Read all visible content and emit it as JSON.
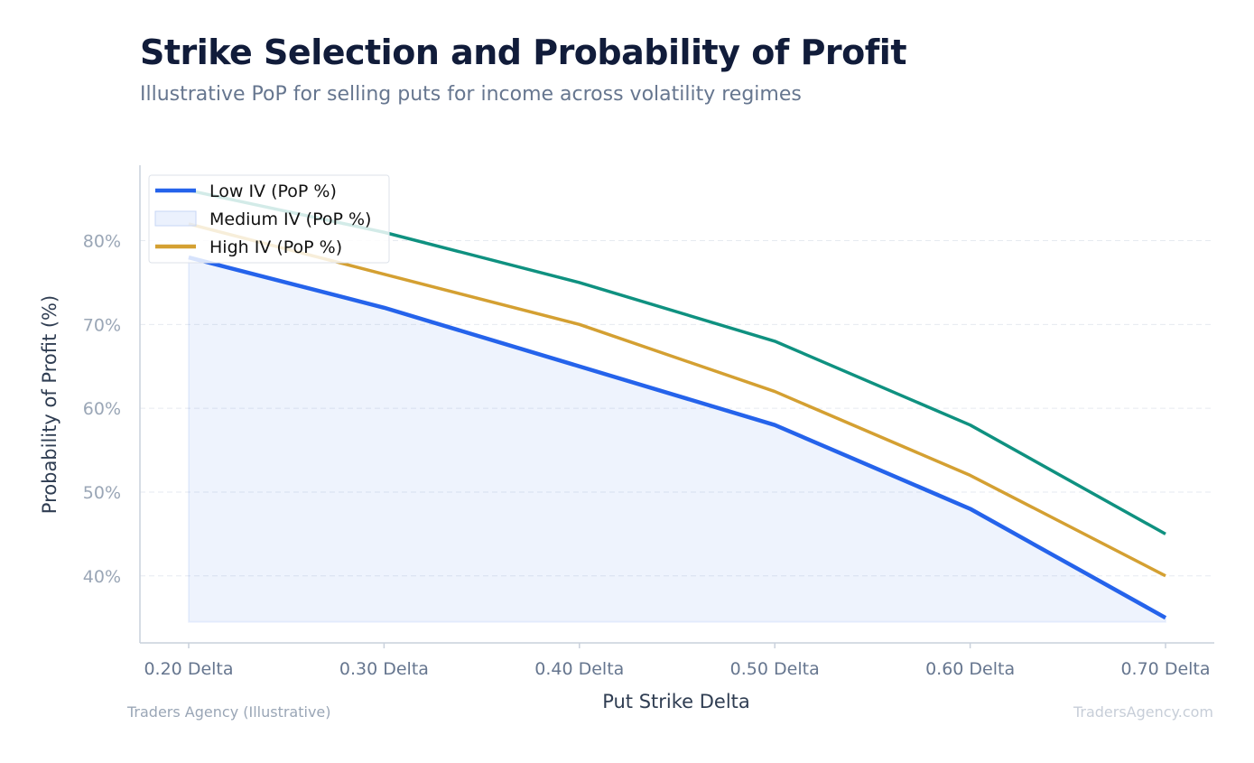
{
  "header": {
    "title": "Strike Selection and Probability of Profit",
    "subtitle": "Illustrative PoP for selling puts for income across volatility regimes"
  },
  "footer": {
    "source": "Traders Agency (Illustrative)",
    "watermark": "TradersAgency.com"
  },
  "chart_data": {
    "type": "line",
    "title": "Strike Selection and Probability of Profit",
    "subtitle": "Illustrative PoP for selling puts for income across volatility regimes",
    "xlabel": "Put Strike Delta",
    "ylabel": "Probability of Profit (%)",
    "categories": [
      "0.20 Delta",
      "0.30 Delta",
      "0.40 Delta",
      "0.50 Delta",
      "0.60 Delta",
      "0.70 Delta"
    ],
    "ylim": [
      32,
      89
    ],
    "yticks": [
      40,
      50,
      60,
      70,
      80
    ],
    "ytick_labels": [
      "40%",
      "50%",
      "60%",
      "70%",
      "80%"
    ],
    "grid": "horizontal dashed",
    "legend_position": "top-left",
    "series": [
      {
        "name": "Low IV (PoP %)",
        "values": [
          78,
          72,
          65,
          58,
          48,
          35
        ],
        "color": "#2563eb",
        "style": "line with area fill"
      },
      {
        "name": "Medium IV (PoP %)",
        "values": [
          86,
          81,
          75,
          68,
          58,
          45
        ],
        "color": "#0f9180",
        "style": "line"
      },
      {
        "name": "High IV (PoP %)",
        "values": [
          82,
          76,
          70,
          62,
          52,
          40
        ],
        "color": "#d4a032",
        "style": "line"
      }
    ],
    "legend": [
      {
        "label": "Low IV (PoP %)",
        "swatch": "line",
        "color": "#2563eb"
      },
      {
        "label": "Medium IV (PoP %)",
        "swatch": "patch",
        "color": "#dbe6fb"
      },
      {
        "label": "High IV (PoP %)",
        "swatch": "line",
        "color": "#d4a032"
      }
    ]
  }
}
